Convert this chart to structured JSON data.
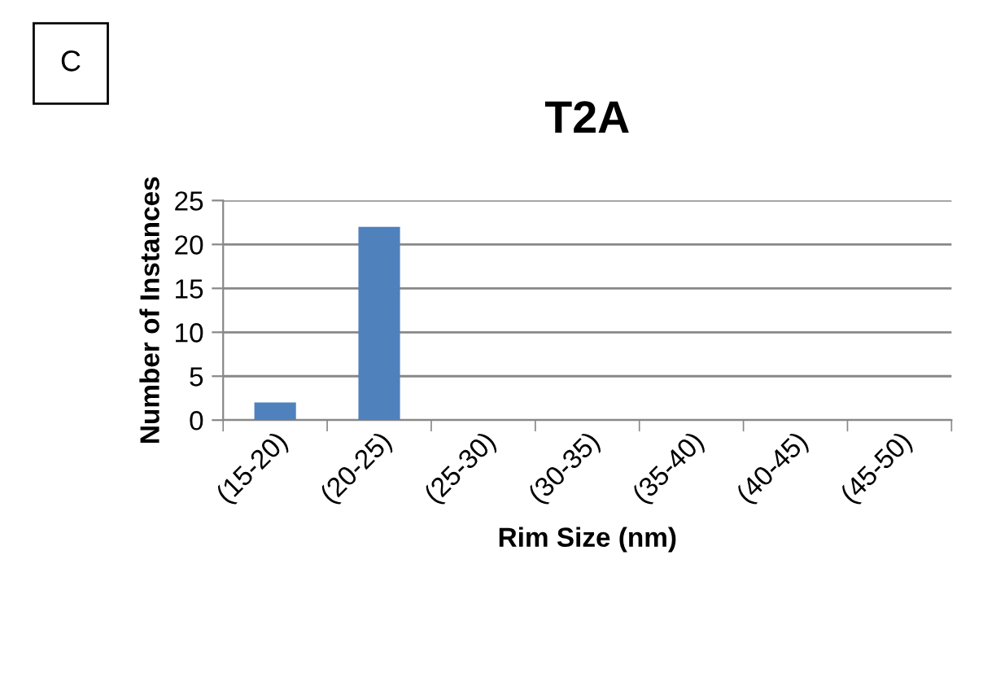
{
  "chart_data": {
    "type": "bar",
    "title": "T2A",
    "xlabel": "Rim Size (nm)",
    "ylabel": "Number of Instances",
    "annotations": [
      "C"
    ],
    "categories": [
      "(15-20)",
      "(20-25)",
      "(25-30)",
      "(30-35)",
      "(35-40)",
      "(40-45)",
      "(45-50)"
    ],
    "values": [
      2,
      22,
      0,
      0,
      0,
      0,
      0
    ],
    "color": "#4f81bd",
    "ylim": [
      0,
      25
    ],
    "yticks": [
      0,
      5,
      10,
      15,
      20,
      25
    ],
    "grid": "y",
    "legend": false
  }
}
